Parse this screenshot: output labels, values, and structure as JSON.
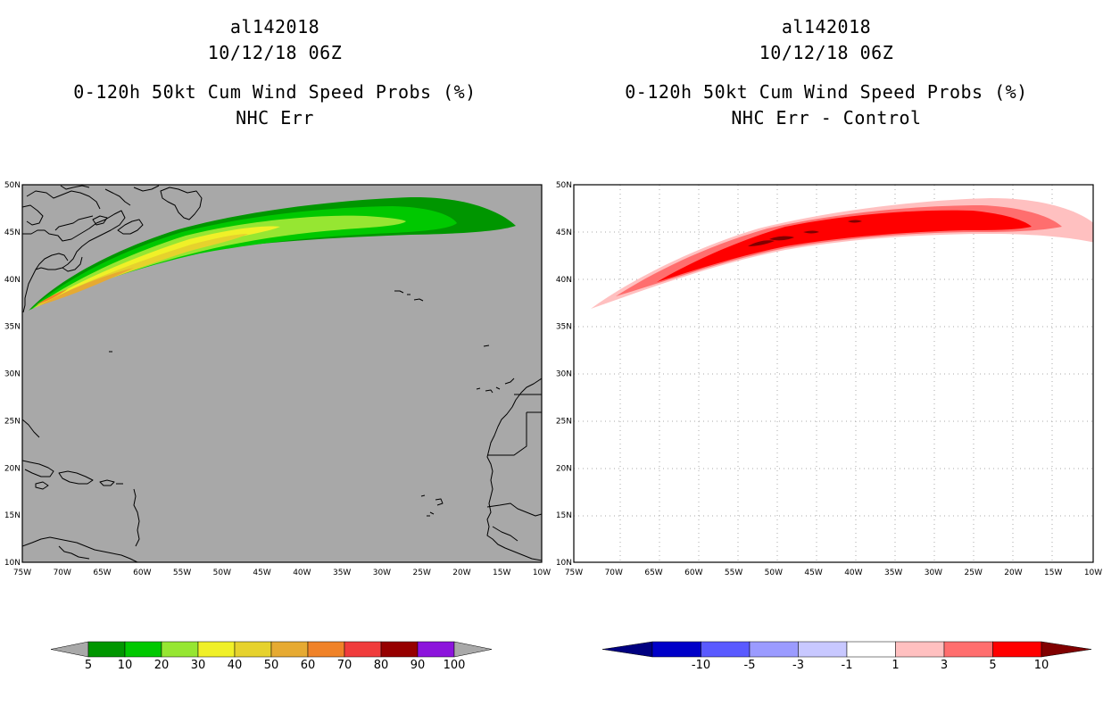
{
  "left_panel": {
    "title_lines": [
      "al142018",
      "10/12/18 06Z",
      "0-120h 50kt Cum Wind Speed Probs (%)",
      "NHC Err"
    ],
    "colorbar": {
      "labels": [
        "5",
        "10",
        "20",
        "30",
        "40",
        "50",
        "60",
        "70",
        "80",
        "90",
        "100"
      ],
      "colors": [
        "#009600",
        "#00c800",
        "#96e632",
        "#f0f028",
        "#e6d22d",
        "#e6aa32",
        "#f08228",
        "#f03c3c",
        "#960000",
        "#8c14dc"
      ],
      "end_color": "#a9a9a9"
    }
  },
  "right_panel": {
    "title_lines": [
      "al142018",
      "10/12/18 06Z",
      "0-120h 50kt Cum Wind Speed Probs (%)",
      "NHC Err - Control"
    ],
    "colorbar": {
      "labels": [
        "-10",
        "-5",
        "-3",
        "-1",
        "1",
        "3",
        "5",
        "10"
      ],
      "colors": [
        "#0000c8",
        "#5a5aff",
        "#9b9bff",
        "#c8c8ff",
        "#ffffff",
        "#ffc0c0",
        "#ff6e6e",
        "#ff0000"
      ],
      "under_color": "#000080",
      "over_color": "#800000"
    }
  },
  "map": {
    "lon_labels": [
      "75W",
      "70W",
      "65W",
      "60W",
      "55W",
      "50W",
      "45W",
      "40W",
      "35W",
      "30W",
      "25W",
      "20W",
      "15W",
      "10W"
    ],
    "lat_labels": [
      "50N",
      "45N",
      "40N",
      "35N",
      "30N",
      "25N",
      "20N",
      "15N",
      "10N"
    ]
  },
  "colors": {
    "left_background": "#a8a8a8",
    "right_background": "#ffffff",
    "coastline": "#000000"
  }
}
